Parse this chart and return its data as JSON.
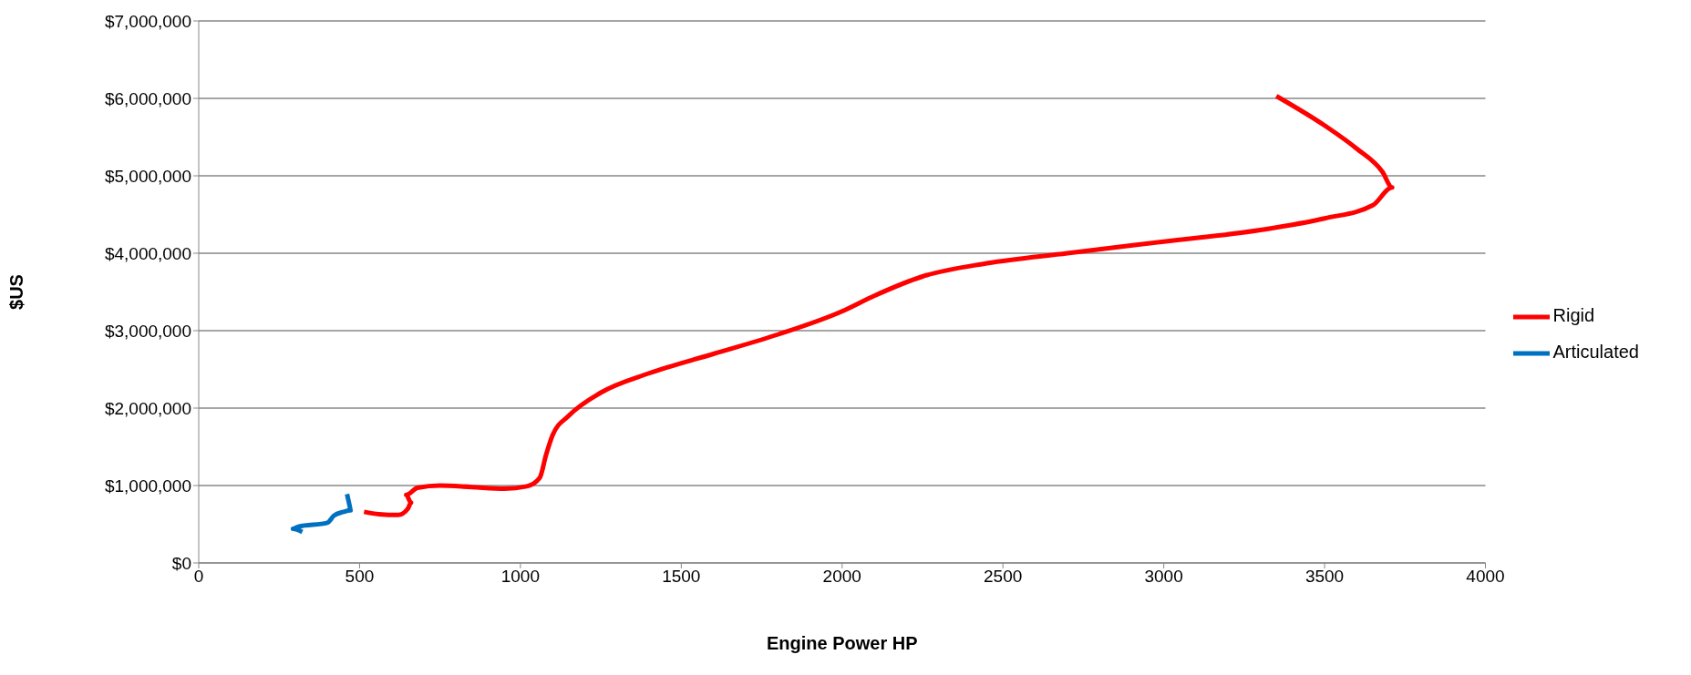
{
  "chart_data": {
    "type": "line",
    "xlabel": "Engine Power HP",
    "ylabel": "$US",
    "xlim": [
      0,
      4000
    ],
    "xticks": [
      0,
      500,
      1000,
      1500,
      2000,
      2500,
      3000,
      3500,
      4000
    ],
    "ylim": [
      0,
      7000000
    ],
    "yticks": [
      {
        "value": 0,
        "label": "$0"
      },
      {
        "value": 1000000,
        "label": "$1,000,000"
      },
      {
        "value": 2000000,
        "label": "$2,000,000"
      },
      {
        "value": 3000000,
        "label": "$3,000,000"
      },
      {
        "value": 4000000,
        "label": "$4,000,000"
      },
      {
        "value": 5000000,
        "label": "$5,000,000"
      },
      {
        "value": 6000000,
        "label": "$6,000,000"
      },
      {
        "value": 7000000,
        "label": "$7,000,000"
      }
    ],
    "grid": "y",
    "legend": "right",
    "marker": "none",
    "line_style": "solid",
    "series": [
      {
        "name": "Rigid",
        "color": "#ff0000",
        "x": [
          514,
          560,
          620,
          650,
          660,
          645,
          680,
          750,
          850,
          950,
          1020,
          1060,
          1080,
          1100,
          1150,
          1250,
          1400,
          1600,
          1800,
          2000,
          2100,
          2250,
          2450,
          2700,
          3000,
          3300,
          3500,
          3650,
          3710,
          3680,
          3600,
          3500,
          3350
        ],
        "values": [
          660000,
          630000,
          620000,
          700000,
          780000,
          880000,
          970000,
          1000000,
          980000,
          960000,
          990000,
          1100000,
          1400000,
          1650000,
          1900000,
          2200000,
          2450000,
          2700000,
          2950000,
          3250000,
          3450000,
          3700000,
          3870000,
          4000000,
          4150000,
          4300000,
          4450000,
          4620000,
          4850000,
          5050000,
          5350000,
          5650000,
          6030000
        ]
      },
      {
        "name": "Articulated",
        "color": "#0070c0",
        "x": [
          322,
          293,
          310,
          400,
          420,
          450,
          472,
          470,
          461
        ],
        "values": [
          400000,
          440000,
          470000,
          520000,
          610000,
          660000,
          680000,
          720000,
          890000
        ]
      }
    ]
  }
}
